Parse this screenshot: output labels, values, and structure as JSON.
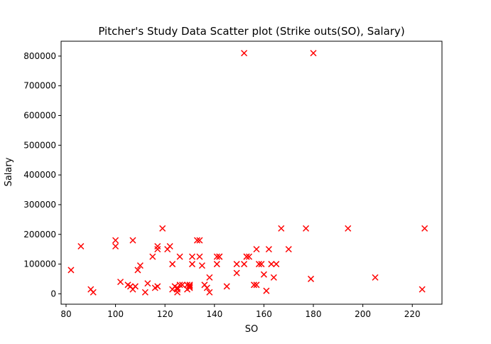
{
  "chart_data": {
    "type": "scatter",
    "title": "Pitcher's Study Data Scatter plot (Strike outs(SO), Salary)",
    "xlabel": "SO",
    "ylabel": "Salary",
    "xlim": [
      78,
      232
    ],
    "ylim": [
      -35000,
      850000
    ],
    "xticks": [
      80,
      100,
      120,
      140,
      160,
      180,
      200,
      220
    ],
    "yticks": [
      0,
      100000,
      200000,
      300000,
      400000,
      500000,
      600000,
      700000,
      800000
    ],
    "grid": false,
    "marker": "x",
    "marker_color": "#ff0000",
    "series": [
      {
        "x": [
          82,
          86,
          90,
          91,
          100,
          100,
          102,
          105,
          106,
          107,
          107,
          108,
          109,
          110,
          112,
          113,
          115,
          116,
          117,
          117,
          117,
          119,
          121,
          122,
          123,
          123,
          124,
          125,
          125,
          125,
          126,
          126,
          127,
          129,
          129,
          130,
          130,
          130,
          131,
          131,
          133,
          134,
          134,
          135,
          136,
          137,
          138,
          138,
          141,
          141,
          142,
          142,
          145,
          149,
          149,
          152,
          152,
          153,
          153,
          154,
          156,
          157,
          157,
          158,
          159,
          160,
          161,
          162,
          163,
          164,
          165,
          167,
          170,
          177,
          179,
          180,
          194,
          205,
          224,
          225
        ],
        "y": [
          80000,
          160000,
          15000,
          5000,
          180000,
          160000,
          40000,
          30000,
          25000,
          180000,
          15000,
          25000,
          80000,
          95000,
          5000,
          35000,
          125000,
          20000,
          160000,
          150000,
          25000,
          220000,
          150000,
          160000,
          100000,
          15000,
          25000,
          5000,
          15000,
          20000,
          125000,
          30000,
          30000,
          15000,
          30000,
          20000,
          25000,
          30000,
          100000,
          125000,
          180000,
          180000,
          125000,
          95000,
          30000,
          20000,
          55000,
          5000,
          100000,
          125000,
          125000,
          125000,
          25000,
          70000,
          100000,
          100000,
          810000,
          125000,
          125000,
          125000,
          30000,
          150000,
          30000,
          100000,
          100000,
          65000,
          10000,
          150000,
          100000,
          55000,
          100000,
          220000,
          150000,
          220000,
          50000,
          810000,
          220000,
          55000,
          15000,
          220000
        ]
      }
    ]
  }
}
